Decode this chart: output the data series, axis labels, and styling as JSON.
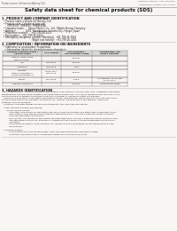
{
  "bg_color": "#f0ede8",
  "page_bg": "#f8f6f2",
  "title": "Safety data sheet for chemical products (SDS)",
  "header_left": "Product name: Lithium Ion Battery Cell",
  "header_right_line1": "Reference Number: SRP-LIB-00010",
  "header_right_line2": "Established / Revision: Dec.7.2019",
  "section1_title": "1. PRODUCT AND COMPANY IDENTIFICATION",
  "section1_lines": [
    "  • Product name: Lithium Ion Battery Cell",
    "  • Product code: Cylindrical-type cell",
    "       (IFR18500, IFR18650, IFR18650A)",
    "  • Company name:     Sanyo Electric Co., Ltd., Mobile Energy Company",
    "  • Address:             2001  Kamikosaka, Sumoto-City, Hyogo, Japan",
    "  • Telephone number:    +81-799-26-4111",
    "  • Fax number:   +81-799-26-4121",
    "  • Emergency telephone number (Weekday)  +81-799-26-3942",
    "                                       (Night and holiday)  +81-799-26-4101"
  ],
  "section2_title": "2. COMPOSITION / INFORMATION ON INGREDIENTS",
  "section2_intro": "  • Substance or preparation: Preparation",
  "section2_sub": "    • Information about the chemical nature of product:",
  "table_headers": [
    "Common chemical name /\nSpecies name",
    "CAS number",
    "Concentration /\nConcentration range",
    "Classification and\nhazard labeling"
  ],
  "table_rows": [
    [
      "Lithium cobalt oxide\n(LiMnCo²(CO₃))",
      "-",
      "30-60%",
      "-"
    ],
    [
      "Iron",
      "7439-89-6",
      "10-20%",
      "-"
    ],
    [
      "Aluminium",
      "7429-90-5",
      "2-5%",
      "-"
    ],
    [
      "Graphite\n(Pitch or graphite-1)\n(Artificial graphite-1)",
      "77783-48-2\n7782-42-5",
      "10-20%",
      "-"
    ],
    [
      "Copper",
      "7440-50-8",
      "5-15%",
      "Sensitization of the skin\ngroup No.2"
    ],
    [
      "Organic electrolyte",
      "-",
      "10-20%",
      "Inflammable liquid"
    ]
  ],
  "section3_title": "3. HAZARDS IDENTIFICATION",
  "section3_text": [
    "  For the battery cell, chemical materials are stored in a hermetically sealed metal case, designed to withstand",
    "temperatures and pressures-variations occurring during normal use. As a result, during normal use, there is no",
    "physical danger of ignition or explosion and thus no danger of hazardous materials leakage.",
    "   However, if exposed to a fire added mechanical shocks, decomposed, violent electric shock etc may occur,",
    "the gas inside cannot be operated. The battery cell case will be breached of fire-pictures, hazardous",
    "materials may be released.",
    "   Moreover, if heated strongly by the surrounding fire, toxic gas may be emitted.",
    "",
    "  • Most important hazard and effects:",
    "       Human health effects:",
    "           Inhalation: The release of the electrolyte has an anesthesia action and stimulates a respiratory tract.",
    "           Skin contact: The release of the electrolyte stimulates a skin. The electrolyte skin contact causes a",
    "           sore and stimulation on the skin.",
    "           Eye contact: The release of the electrolyte stimulates eyes. The electrolyte eye contact causes a sore",
    "           and stimulation on the eye. Especially, a substance that causes a strong inflammation of the eye is",
    "           contained.",
    "           Environmental effects: Since a battery cell remains in the environment, do not throw out it into the",
    "           environment.",
    "",
    "  • Specific hazards:",
    "           If the electrolyte contacts with water, it will generate detrimental hydrogen fluoride.",
    "           Since the used electrolyte is inflammable liquid, do not bring close to fire."
  ],
  "footer_line": true
}
